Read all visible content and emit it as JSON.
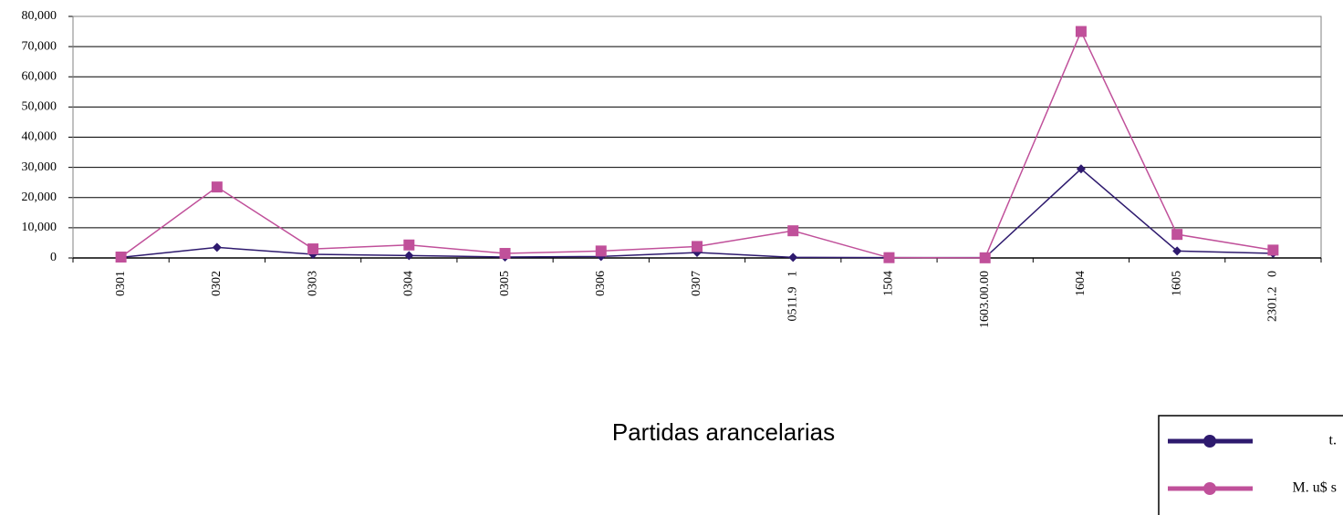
{
  "chart_data": {
    "type": "line",
    "x_label": "Partidas arancelarias",
    "categories": [
      "0301",
      "0302",
      "0303",
      "0304",
      "0305",
      "0306",
      "0307",
      "0511.9   1",
      "1504",
      "1603.00.00",
      "1604",
      "1605",
      "2301.2   0"
    ],
    "series": [
      {
        "name": "t.",
        "color": "#2e1a6e",
        "marker": "diamond",
        "values": [
          200,
          3500,
          1200,
          800,
          300,
          500,
          1800,
          200,
          100,
          100,
          29500,
          2300,
          1500
        ]
      },
      {
        "name": "M. u$ s",
        "color": "#c0509a",
        "marker": "square",
        "values": [
          300,
          23500,
          3000,
          4300,
          1500,
          2300,
          3800,
          9000,
          100,
          50,
          75000,
          7800,
          2600
        ]
      }
    ],
    "ylim": [
      0,
      80000
    ],
    "yticks": [
      0,
      {
        "value": 10000,
        "label": "10,000"
      },
      {
        "value": 20000,
        "label": "20,000"
      },
      {
        "value": 30000,
        "label": "30,000"
      },
      {
        "value": 40000,
        "label": "40,000"
      },
      {
        "value": 50000,
        "label": "50,000"
      },
      {
        "value": 60000,
        "label": "60,000"
      },
      {
        "value": 70000,
        "label": "70,000"
      },
      {
        "value": 80000,
        "label": "80,000"
      }
    ],
    "grid": true,
    "legend": "bottom-right"
  }
}
